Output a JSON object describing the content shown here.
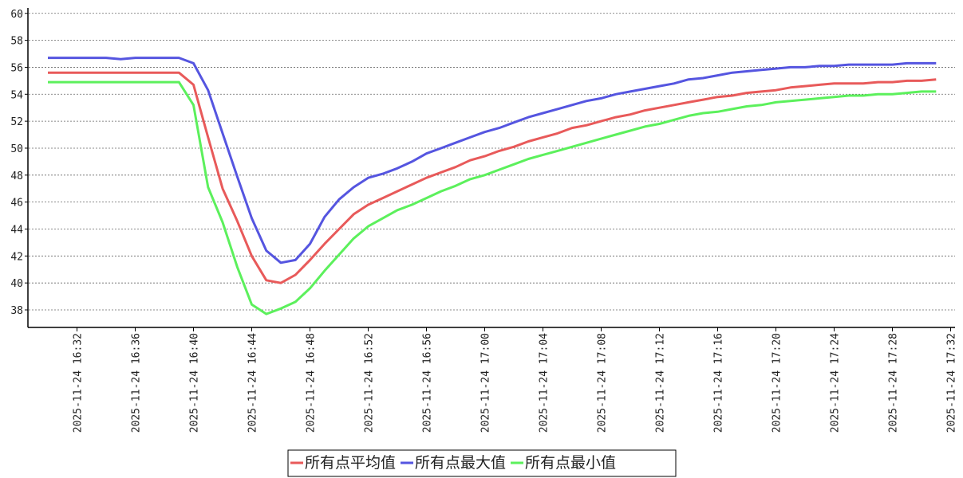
{
  "chart_data": {
    "type": "line",
    "categories": [
      null,
      null,
      "2025-11-24 16:32",
      null,
      null,
      null,
      "2025-11-24 16:36",
      null,
      null,
      null,
      "2025-11-24 16:40",
      null,
      null,
      null,
      "2025-11-24 16:44",
      null,
      null,
      null,
      "2025-11-24 16:48",
      null,
      null,
      null,
      "2025-11-24 16:52",
      null,
      null,
      null,
      "2025-11-24 16:56",
      null,
      null,
      null,
      "2025-11-24 17:00",
      null,
      null,
      null,
      "2025-11-24 17:04",
      null,
      null,
      null,
      "2025-11-24 17:08",
      null,
      null,
      null,
      "2025-11-24 17:12",
      null,
      null,
      null,
      "2025-11-24 17:16",
      null,
      null,
      null,
      "2025-11-24 17:20",
      null,
      null,
      null,
      "2025-11-24 17:24",
      null,
      null,
      null,
      "2025-11-24 17:28",
      null,
      null,
      null,
      "2025-11-24 17:32"
    ],
    "series": [
      {
        "name": "所有点平均值",
        "color": "#e85a5a",
        "values": [
          55.6,
          55.6,
          55.6,
          55.6,
          55.6,
          55.6,
          55.6,
          55.6,
          55.6,
          55.6,
          54.7,
          50.8,
          47.0,
          44.6,
          42.0,
          40.2,
          40.0,
          40.6,
          41.7,
          42.9,
          44.0,
          45.1,
          45.8,
          46.3,
          46.8,
          47.3,
          47.8,
          48.2,
          48.6,
          49.1,
          49.4,
          49.8,
          50.1,
          50.5,
          50.8,
          51.1,
          51.5,
          51.7,
          52.0,
          52.3,
          52.5,
          52.8,
          53.0,
          53.2,
          53.4,
          53.6,
          53.8,
          53.9,
          54.1,
          54.2,
          54.3,
          54.5,
          54.6,
          54.7,
          54.8,
          54.8,
          54.8,
          54.9,
          54.9,
          55.0,
          55.0,
          55.1,
          null
        ]
      },
      {
        "name": "所有点最大值",
        "color": "#5555e0",
        "values": [
          56.7,
          56.7,
          56.7,
          56.7,
          56.7,
          56.6,
          56.7,
          56.7,
          56.7,
          56.7,
          56.3,
          54.3,
          51.1,
          47.9,
          44.8,
          42.4,
          41.5,
          41.7,
          42.9,
          44.9,
          46.2,
          47.1,
          47.8,
          48.1,
          48.5,
          49.0,
          49.6,
          50.0,
          50.4,
          50.8,
          51.2,
          51.5,
          51.9,
          52.3,
          52.6,
          52.9,
          53.2,
          53.5,
          53.7,
          54.0,
          54.2,
          54.4,
          54.6,
          54.8,
          55.1,
          55.2,
          55.4,
          55.6,
          55.7,
          55.8,
          55.9,
          56.0,
          56.0,
          56.1,
          56.1,
          56.2,
          56.2,
          56.2,
          56.2,
          56.3,
          56.3,
          56.3,
          null
        ]
      },
      {
        "name": "所有点最小值",
        "color": "#5cf05c",
        "values": [
          54.9,
          54.9,
          54.9,
          54.9,
          54.9,
          54.9,
          54.9,
          54.9,
          54.9,
          54.9,
          53.2,
          47.1,
          44.5,
          41.2,
          38.4,
          37.7,
          38.1,
          38.6,
          39.6,
          40.9,
          42.1,
          43.3,
          44.2,
          44.8,
          45.4,
          45.8,
          46.3,
          46.8,
          47.2,
          47.7,
          48.0,
          48.4,
          48.8,
          49.2,
          49.5,
          49.8,
          50.1,
          50.4,
          50.7,
          51.0,
          51.3,
          51.6,
          51.8,
          52.1,
          52.4,
          52.6,
          52.7,
          52.9,
          53.1,
          53.2,
          53.4,
          53.5,
          53.6,
          53.7,
          53.8,
          53.9,
          53.9,
          54.0,
          54.0,
          54.1,
          54.2,
          54.2,
          null
        ]
      }
    ],
    "ylim": [
      36.7,
      60.4
    ],
    "yticks": [
      38,
      40,
      42,
      44,
      46,
      48,
      50,
      52,
      54,
      56,
      58,
      60
    ],
    "grid": true
  }
}
